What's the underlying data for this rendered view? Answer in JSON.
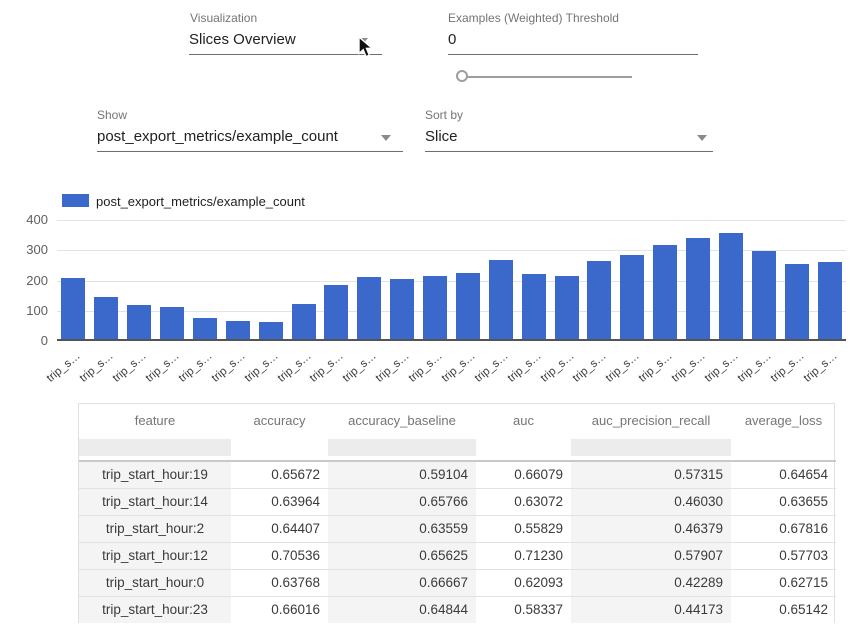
{
  "controls": {
    "visualization": {
      "label": "Visualization",
      "value": "Slices Overview"
    },
    "threshold": {
      "label": "Examples (Weighted) Threshold",
      "value": "0",
      "slider_value": 0
    },
    "show": {
      "label": "Show",
      "value": "post_export_metrics/example_count"
    },
    "sort_by": {
      "label": "Sort by",
      "value": "Slice"
    }
  },
  "chart_data": {
    "type": "bar",
    "title": "",
    "legend": [
      "post_export_metrics/example_count"
    ],
    "legend_position": "top-left",
    "series_color": "#3b69cb",
    "ylim": [
      0,
      400
    ],
    "y_ticks": [
      0,
      100,
      200,
      300,
      400
    ],
    "grid": true,
    "x_tick_label_truncated": "trip_s…",
    "categories": [
      "trip_s…",
      "trip_s…",
      "trip_s…",
      "trip_s…",
      "trip_s…",
      "trip_s…",
      "trip_s…",
      "trip_s…",
      "trip_s…",
      "trip_s…",
      "trip_s…",
      "trip_s…",
      "trip_s…",
      "trip_s…",
      "trip_s…",
      "trip_s…",
      "trip_s…",
      "trip_s…",
      "trip_s…",
      "trip_s…",
      "trip_s…",
      "trip_s…",
      "trip_s…",
      "trip_s…"
    ],
    "values": [
      209,
      146,
      118,
      114,
      77,
      67,
      62,
      123,
      185,
      210,
      205,
      216,
      224,
      268,
      222,
      215,
      265,
      283,
      318,
      340,
      357,
      296,
      255,
      261
    ]
  },
  "table": {
    "columns": [
      "feature",
      "accuracy",
      "accuracy_baseline",
      "auc",
      "auc_precision_recall",
      "average_loss"
    ],
    "rows": [
      [
        "trip_start_hour:19",
        "0.65672",
        "0.59104",
        "0.66079",
        "0.57315",
        "0.64654"
      ],
      [
        "trip_start_hour:14",
        "0.63964",
        "0.65766",
        "0.63072",
        "0.46030",
        "0.63655"
      ],
      [
        "trip_start_hour:2",
        "0.64407",
        "0.63559",
        "0.55829",
        "0.46379",
        "0.67816"
      ],
      [
        "trip_start_hour:12",
        "0.70536",
        "0.65625",
        "0.71230",
        "0.57907",
        "0.57703"
      ],
      [
        "trip_start_hour:0",
        "0.63768",
        "0.66667",
        "0.62093",
        "0.42289",
        "0.62715"
      ],
      [
        "trip_start_hour:23",
        "0.66016",
        "0.64844",
        "0.58337",
        "0.44173",
        "0.65142"
      ]
    ]
  },
  "colors": {
    "bar": "#3b69cb",
    "label_gray": "#757575",
    "stripe": "#f4f4f4"
  }
}
